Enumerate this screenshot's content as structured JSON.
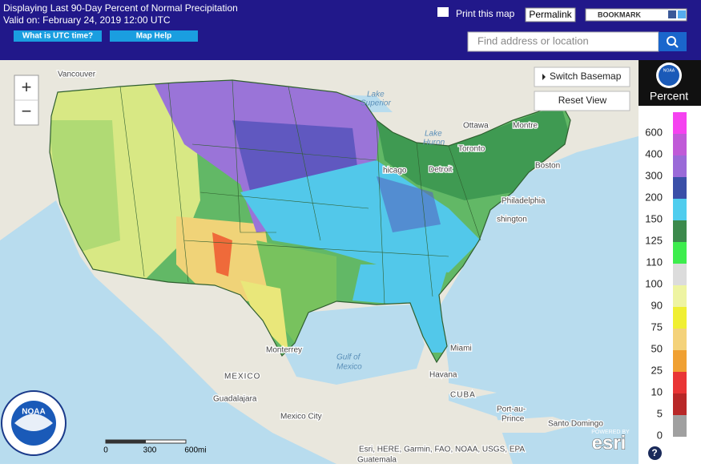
{
  "header": {
    "title": "Displaying Last 90-Day Percent of Normal Precipitation",
    "valid": "Valid on: February 24, 2019 12:00 UTC",
    "buttons": [
      "What is UTC time?",
      "Map Help"
    ],
    "print": "Print this map",
    "permalink": "Permalink",
    "bookmark": "BOOKMARK",
    "search_placeholder": "Find address or location"
  },
  "map": {
    "controls": {
      "zoom_in": "+",
      "zoom_out": "−",
      "switch_basemap": "Switch Basemap",
      "reset_view": "Reset View",
      "help": "?"
    },
    "labels": [
      "Vancouver",
      "Lake",
      "Superior",
      "Ottawa",
      "Montre",
      "Lake",
      "Huron",
      "Toronto",
      "Boston",
      "hicago",
      "Detroit",
      "Philadelphia",
      "shington",
      "Monterrey",
      "Gulf of",
      "Mexico",
      "Miami",
      "Havana",
      "MEXICO",
      "CUBA",
      "Guadalajara",
      "Mexico City",
      "Port-au-",
      "Prince",
      "Santo Domingo",
      "Guatemala"
    ],
    "scale_bar": [
      "0",
      "300",
      "600mi"
    ],
    "attribution": "Esri, HERE, Garmin, FAO, NOAA, USGS, EPA",
    "powered_by": "POWERED BY",
    "esri": "esri",
    "seal": "NOAA"
  },
  "legend": {
    "logo": "NOAA",
    "title": "Percent",
    "items": [
      {
        "label": 600,
        "color": "#f542f0"
      },
      {
        "label": 400,
        "color": "#c05ad8"
      },
      {
        "label": 300,
        "color": "#9a6ad8"
      },
      {
        "label": 200,
        "color": "#3a4fa8"
      },
      {
        "label": 150,
        "color": "#4fcdee"
      },
      {
        "label": 125,
        "color": "#3c8a4c"
      },
      {
        "label": 110,
        "color": "#3ded4d"
      },
      {
        "label": 100,
        "color": "#dcdcdc"
      },
      {
        "label": 90,
        "color": "#eef4a2"
      },
      {
        "label": 75,
        "color": "#f0ef32"
      },
      {
        "label": 50,
        "color": "#f4d27a"
      },
      {
        "label": 25,
        "color": "#f0a032"
      },
      {
        "label": 10,
        "color": "#e93535"
      },
      {
        "label": 5,
        "color": "#b82828"
      },
      {
        "label": 0,
        "color": "#a0a0a0"
      }
    ]
  }
}
